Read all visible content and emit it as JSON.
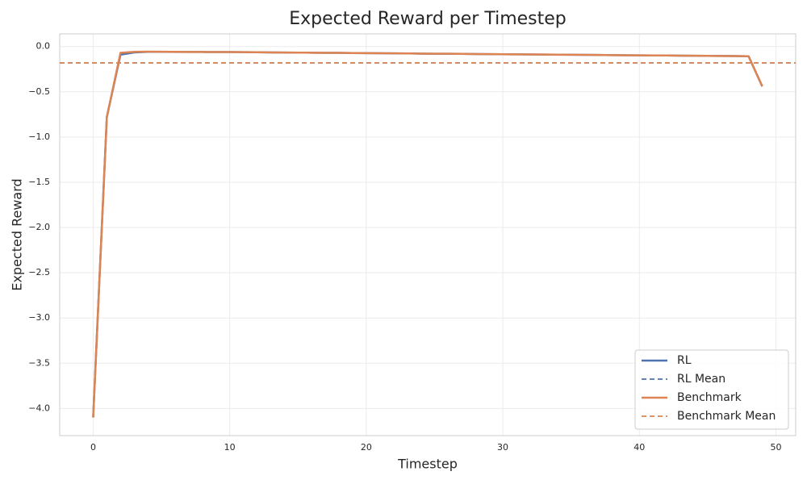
{
  "chart_data": {
    "type": "line",
    "title": "Expected Reward per Timestep",
    "xlabel": "Timestep",
    "ylabel": "Expected Reward",
    "x": [
      0,
      1,
      2,
      3,
      4,
      5,
      6,
      7,
      8,
      9,
      10,
      11,
      12,
      13,
      14,
      15,
      16,
      17,
      18,
      19,
      20,
      21,
      22,
      23,
      24,
      25,
      26,
      27,
      28,
      29,
      30,
      31,
      32,
      33,
      34,
      35,
      36,
      37,
      38,
      39,
      40,
      41,
      42,
      43,
      44,
      45,
      46,
      47,
      48,
      49
    ],
    "series": [
      {
        "name": "RL",
        "color": "#4c72b0",
        "values": [
          -4.1,
          -0.78,
          -0.09,
          -0.065,
          -0.058,
          -0.058,
          -0.059,
          -0.059,
          -0.06,
          -0.061,
          -0.061,
          -0.062,
          -0.063,
          -0.065,
          -0.066,
          -0.067,
          -0.068,
          -0.069,
          -0.07,
          -0.072,
          -0.073,
          -0.074,
          -0.075,
          -0.076,
          -0.078,
          -0.079,
          -0.08,
          -0.081,
          -0.083,
          -0.084,
          -0.085,
          -0.086,
          -0.087,
          -0.089,
          -0.09,
          -0.091,
          -0.092,
          -0.093,
          -0.095,
          -0.096,
          -0.097,
          -0.098,
          -0.099,
          -0.101,
          -0.102,
          -0.103,
          -0.104,
          -0.105,
          -0.107,
          -0.44
        ]
      },
      {
        "name": "RL Mean",
        "color": "#4c72b0",
        "dashed": true,
        "value": -0.18
      },
      {
        "name": "Benchmark",
        "color": "#dd8452",
        "values": [
          -4.1,
          -0.78,
          -0.07,
          -0.058,
          -0.056,
          -0.057,
          -0.058,
          -0.059,
          -0.06,
          -0.061,
          -0.061,
          -0.062,
          -0.063,
          -0.065,
          -0.066,
          -0.067,
          -0.068,
          -0.069,
          -0.07,
          -0.072,
          -0.073,
          -0.074,
          -0.075,
          -0.076,
          -0.078,
          -0.079,
          -0.08,
          -0.081,
          -0.083,
          -0.084,
          -0.085,
          -0.086,
          -0.087,
          -0.089,
          -0.09,
          -0.091,
          -0.092,
          -0.093,
          -0.095,
          -0.096,
          -0.097,
          -0.098,
          -0.099,
          -0.101,
          -0.102,
          -0.103,
          -0.104,
          -0.105,
          -0.107,
          -0.44
        ]
      },
      {
        "name": "Benchmark Mean",
        "color": "#dd8452",
        "dashed": true,
        "value": -0.18
      }
    ],
    "xlim": [
      -2.45,
      51.45
    ],
    "xticks": [
      0,
      10,
      20,
      30,
      40,
      50
    ],
    "ylim": [
      -4.3,
      0.14
    ],
    "yticks": [
      {
        "value": 0,
        "label": "0.0"
      },
      {
        "value": -0.5,
        "label": "−0.5"
      },
      {
        "value": -1,
        "label": "−1.0"
      },
      {
        "value": -1.5,
        "label": "−1.5"
      },
      {
        "value": -2,
        "label": "−2.0"
      },
      {
        "value": -2.5,
        "label": "−2.5"
      },
      {
        "value": -3,
        "label": "−3.0"
      },
      {
        "value": -3.5,
        "label": "−3.5"
      },
      {
        "value": -4,
        "label": "−4.0"
      }
    ],
    "grid": true,
    "legend": "lower right"
  }
}
